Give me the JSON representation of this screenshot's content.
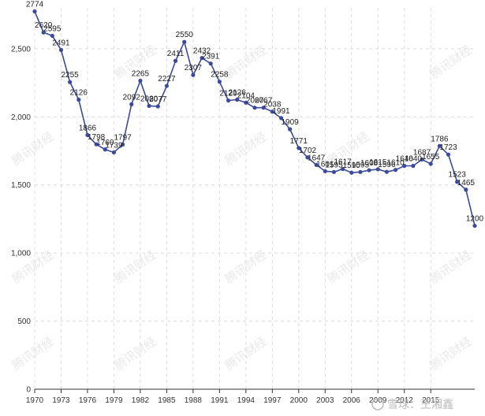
{
  "chart_data": {
    "type": "line",
    "x": [
      1970,
      1971,
      1972,
      1973,
      1974,
      1975,
      1976,
      1977,
      1978,
      1979,
      1980,
      1981,
      1982,
      1983,
      1984,
      1985,
      1986,
      1987,
      1988,
      1989,
      1990,
      1991,
      1992,
      1993,
      1994,
      1995,
      1996,
      1997,
      1998,
      1999,
      2000,
      2001,
      2002,
      2003,
      2004,
      2005,
      2006,
      2007,
      2008,
      2009,
      2010,
      2011,
      2012,
      2013,
      2014,
      2015,
      2016,
      2017,
      2018,
      2019,
      2020
    ],
    "series": [
      {
        "values": [
          2774,
          2620,
          2595,
          2491,
          2255,
          2126,
          1866,
          1798,
          1760,
          1739,
          1797,
          2092,
          2265,
          2080,
          2077,
          2227,
          2411,
          2550,
          2307,
          2432,
          2391,
          2258,
          2120,
          2126,
          2104,
          2067,
          2067,
          2038,
          1991,
          1909,
          1771,
          1702,
          1647,
          1601,
          1595,
          1617,
          1590,
          1595,
          1608,
          1615,
          1596,
          1610,
          1640,
          1640,
          1687,
          1655,
          1786,
          1723,
          1523,
          1465,
          1200
        ],
        "labels": [
          "2774",
          "2620",
          "2595",
          "2491",
          "2255",
          "2126",
          "1866",
          "1798",
          "1760",
          "1739",
          "1797",
          "2092",
          "2265",
          "2080",
          "2077",
          "2227",
          "2411",
          "2550",
          "2307",
          "2432",
          "2391",
          "2258",
          "2120",
          "2126",
          "2104",
          "2067",
          "2067",
          "2038",
          "1991",
          "1909",
          "1771",
          "1702",
          "1647",
          "1601",
          "1595",
          "1617",
          "1590",
          "1595",
          "1608",
          "1615",
          "1596",
          "1610",
          "1640",
          "1640",
          "1687",
          "1655",
          "1786",
          "1723",
          "1523",
          "1465",
          "1200"
        ]
      }
    ],
    "x_ticks": [
      "1970",
      "1973",
      "1976",
      "1979",
      "1982",
      "1985",
      "1988",
      "1991",
      "1994",
      "1997",
      "2000",
      "2003",
      "2006",
      "2009",
      "2012",
      "2015"
    ],
    "x_tick_values": [
      1970,
      1973,
      1976,
      1979,
      1982,
      1985,
      1988,
      1991,
      1994,
      1997,
      2000,
      2003,
      2006,
      2009,
      2012,
      2015
    ],
    "y_ticks": [
      "0",
      "500",
      "1,000",
      "1,500",
      "2,000",
      "2,500"
    ],
    "y_tick_values": [
      0,
      500,
      1000,
      1500,
      2000,
      2500
    ],
    "xlim": [
      1970,
      2020
    ],
    "ylim": [
      0,
      2800
    ],
    "grid": true,
    "colors": {
      "line": "#3b4a9c",
      "grid": "#dcdcdc",
      "axis": "#333333"
    },
    "watermark_text": "腾讯财经",
    "logo_text": "雪球：王湘鑫"
  }
}
